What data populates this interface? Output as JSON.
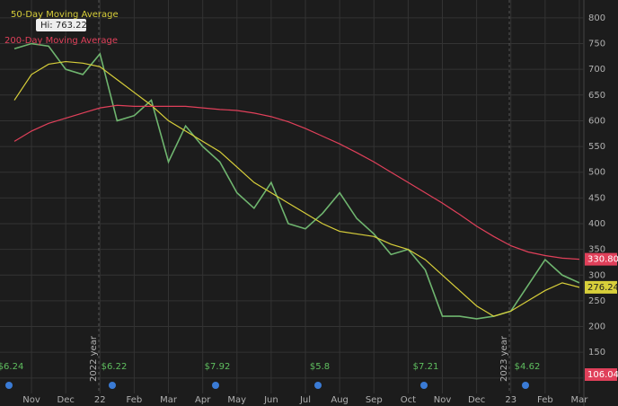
{
  "chart_data": {
    "type": "line",
    "hi_label": "Hi: 763.22",
    "categories": [
      null,
      "Nov",
      null,
      "Dec",
      null,
      "22",
      null,
      "Feb",
      null,
      "Mar",
      null,
      "Apr",
      null,
      "May",
      null,
      "Jun",
      null,
      "Jul",
      null,
      "Aug",
      null,
      "Sep",
      null,
      "Oct",
      null,
      "Nov",
      null,
      "Dec",
      null,
      "23",
      null,
      "Feb",
      null,
      "Mar"
    ],
    "series": [
      {
        "name": "Price",
        "color": "#6fb56f",
        "values": [
          740,
          750,
          745,
          700,
          690,
          730,
          600,
          610,
          640,
          520,
          590,
          550,
          520,
          460,
          430,
          480,
          400,
          390,
          420,
          460,
          410,
          380,
          340,
          350,
          310,
          220,
          220,
          215,
          220,
          230,
          280,
          330,
          300,
          285
        ]
      },
      {
        "name": "50-Day Moving Average",
        "color": "#d8cf3a",
        "last_label": "276.24",
        "values": [
          640,
          690,
          710,
          715,
          712,
          705,
          680,
          655,
          630,
          600,
          580,
          560,
          540,
          510,
          480,
          460,
          440,
          420,
          400,
          385,
          380,
          375,
          360,
          350,
          330,
          300,
          270,
          240,
          220,
          230,
          250,
          270,
          285,
          276.24
        ]
      },
      {
        "name": "200-Day Moving Average",
        "color": "#e0405a",
        "last_label": "330.80",
        "values": [
          560,
          580,
          595,
          605,
          615,
          625,
          630,
          628,
          628,
          628,
          628,
          625,
          622,
          620,
          615,
          608,
          598,
          585,
          570,
          555,
          538,
          520,
          500,
          480,
          460,
          440,
          418,
          395,
          375,
          357,
          345,
          338,
          333,
          330.8
        ]
      }
    ],
    "volume_label": "106.04",
    "year_labels": [
      "2022 year",
      "2023 year"
    ],
    "earnings": [
      "$6.24",
      "$6.22",
      "$7.92",
      "$5.8",
      "$7.21",
      "$4.62"
    ],
    "ylim": [
      70,
      826
    ],
    "yticks": [
      100,
      150,
      200,
      250,
      300,
      350,
      400,
      450,
      500,
      550,
      600,
      650,
      700,
      750,
      800
    ],
    "grid": true
  }
}
